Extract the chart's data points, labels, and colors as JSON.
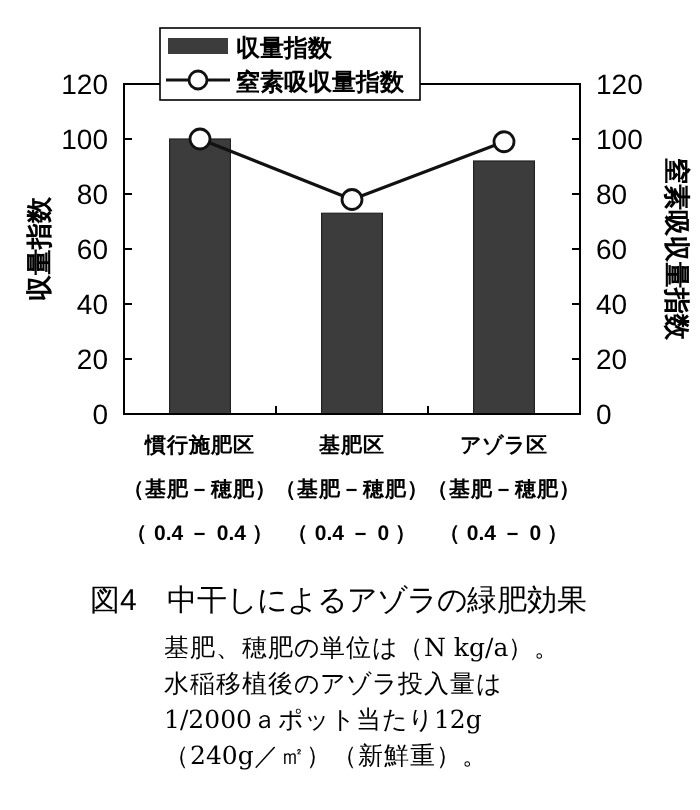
{
  "chart_data": {
    "type": "bar",
    "title": "図4　中干しによるアゾラの緑肥効果",
    "categories": [
      "慣行施肥区（基肥－穂肥）（ 0.4 － 0.4 ）",
      "基肥区（基肥－穂肥）（ 0.4 － 0 ）",
      "アゾラ区（基肥－穂肥）（ 0.4 － 0 ）"
    ],
    "series": [
      {
        "name": "収量指数",
        "color": "#3c3c3c",
        "values": [
          100,
          73,
          92
        ]
      },
      {
        "name": "窒素吸収量指数",
        "type": "line",
        "axis": "y2",
        "color": "#111111",
        "values": [
          100,
          78,
          99
        ]
      }
    ],
    "ylabel": "収量指数",
    "y2label": "窒素吸収量指数",
    "ylim": [
      0,
      120
    ],
    "yticks": [
      0,
      20,
      40,
      60,
      80,
      100,
      120
    ],
    "y2lim": [
      0,
      120
    ],
    "y2ticks": [
      0,
      20,
      40,
      60,
      80,
      100,
      120
    ],
    "marker": "circle",
    "legend": "top left",
    "grid": false,
    "annotations": [
      "基肥、穂肥の単位は（N kg/a）。",
      "水稲移植後のアゾラ投入量は",
      "1/2000ａポット当たり12g",
      "（240g／㎡）（新鮮重）。"
    ]
  }
}
